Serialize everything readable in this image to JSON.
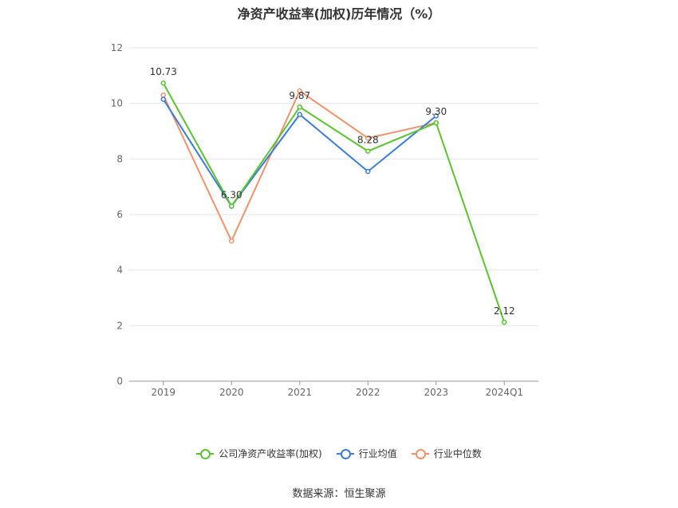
{
  "chart_data": {
    "type": "line",
    "title": "净资产收益率(加权)历年情况（%）",
    "categories": [
      "2019",
      "2020",
      "2021",
      "2022",
      "2023",
      "2024Q1"
    ],
    "ylim": [
      0,
      12
    ],
    "yticks": [
      0,
      2,
      4,
      6,
      8,
      10,
      12
    ],
    "grid": true,
    "legend_position": "bottom",
    "series": [
      {
        "name": "公司净资产收益率(加权)",
        "color": "#5ac42f",
        "values": [
          10.73,
          6.3,
          9.87,
          8.28,
          9.3,
          2.12
        ],
        "labels": [
          "10.73",
          "6.30",
          "9.87",
          "8.28",
          "9.30",
          "2.12"
        ]
      },
      {
        "name": "行业均值",
        "color": "#3d7bd9",
        "values": [
          10.15,
          6.3,
          9.6,
          7.55,
          9.55,
          null
        ]
      },
      {
        "name": "行业中位数",
        "color": "#f0926a",
        "values": [
          10.3,
          5.05,
          10.45,
          8.75,
          9.3,
          null
        ]
      }
    ]
  },
  "source_text": "数据来源：恒生聚源"
}
